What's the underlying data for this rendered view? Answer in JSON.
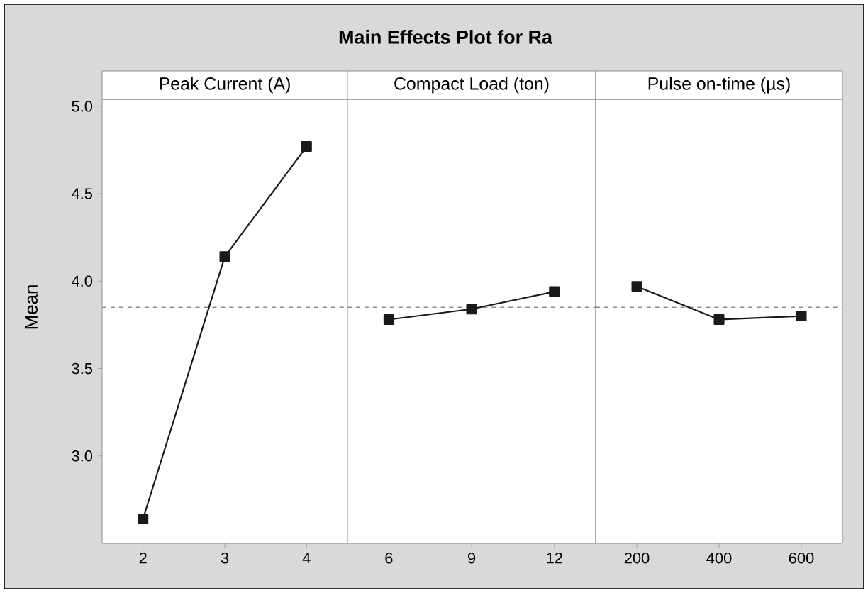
{
  "chart_data": [
    {
      "type": "line",
      "subtitle": "Peak Current (A)",
      "ylabel": "Mean",
      "categories": [
        "2",
        "3",
        "4"
      ],
      "series": [
        {
          "color": "#1a1a1a",
          "values": [
            2.64,
            4.14,
            4.77
          ]
        }
      ],
      "ylim": [
        2.5,
        5.04
      ],
      "yticks": [
        {
          "value": 3,
          "label": "3.0"
        },
        3.5,
        {
          "value": 4,
          "label": "4.0"
        },
        4.5,
        {
          "value": 5,
          "label": "5.0"
        }
      ],
      "marker": "square",
      "line_style": "solid",
      "ref_lines": [
        {
          "axis": "y",
          "value": 3.85,
          "color": "#8c8c8c",
          "line_style": "dashed"
        }
      ]
    },
    {
      "type": "line",
      "subtitle": "Compact Load (ton)",
      "categories": [
        "6",
        "9",
        "12"
      ],
      "series": [
        {
          "color": "#1a1a1a",
          "values": [
            3.78,
            3.84,
            3.94
          ]
        }
      ],
      "ylim": [
        2.5,
        5.04
      ],
      "tick_labels": "x",
      "marker": "square",
      "line_style": "solid",
      "ref_lines": [
        {
          "axis": "y",
          "value": 3.85,
          "color": "#8c8c8c",
          "line_style": "dashed"
        }
      ]
    },
    {
      "type": "line",
      "subtitle": "Pulse on-time (µs)",
      "categories": [
        "200",
        "400",
        "600"
      ],
      "series": [
        {
          "color": "#1a1a1a",
          "values": [
            3.97,
            3.78,
            3.8
          ]
        }
      ],
      "ylim": [
        2.5,
        5.04
      ],
      "tick_labels": "x",
      "marker": "square",
      "line_style": "solid",
      "ref_lines": [
        {
          "axis": "y",
          "value": 3.85,
          "color": "#8c8c8c",
          "line_style": "dashed"
        }
      ]
    },
    {
      "type": "other",
      "title": "Main Effects Plot for Ra"
    }
  ]
}
